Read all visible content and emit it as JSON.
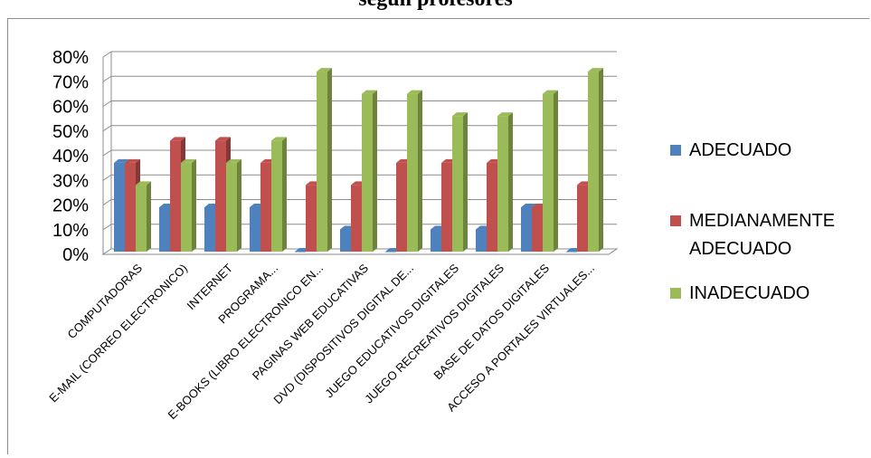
{
  "header": {
    "title": "según profesores"
  },
  "chart_data": {
    "type": "bar",
    "title": "según profesores",
    "categories": [
      "COMPUTADORAS",
      "E-MAIL (CORREO ELECTRONICO)",
      "INTERNET",
      "PROGRAMA...",
      "E-BOOKS (LIBRO ELECTRONICO EN...",
      "PAGINAS WEB EDUCATIVAS",
      "DVD (DISPOSITIVOS DIGITAL DE...",
      "JUEGO EDUCATIVOS DIGITALES",
      "JUEGO RECREATIVOS DIGITALES",
      "BASE DE DATOS DIGITALES",
      "ACCESO A PORTALES VIRTUALES..."
    ],
    "series": [
      {
        "name": "ADECUADO",
        "color": "#4f81bd",
        "values": [
          36,
          18,
          18,
          18,
          0,
          9,
          0,
          9,
          9,
          18,
          0
        ]
      },
      {
        "name": "MEDIANAMENTE ADECUADO",
        "color": "#c0504d",
        "values": [
          36,
          45,
          45,
          36,
          27,
          27,
          36,
          36,
          36,
          18,
          27
        ]
      },
      {
        "name": "INADECUADO",
        "color": "#9bbb59",
        "values": [
          27,
          36,
          36,
          45,
          73,
          64,
          64,
          55,
          55,
          64,
          73
        ]
      }
    ],
    "yticks": [
      "0%",
      "10%",
      "20%",
      "30%",
      "40%",
      "50%",
      "60%",
      "70%",
      "80%"
    ],
    "ylim": [
      0,
      80
    ],
    "grid": true,
    "legend_position": "right",
    "legend": [
      {
        "lines": [
          "ADECUADO"
        ]
      },
      {
        "lines": [
          "MEDIANAMENTE",
          "ADECUADO"
        ]
      },
      {
        "lines": [
          "INADECUADO"
        ]
      }
    ]
  }
}
